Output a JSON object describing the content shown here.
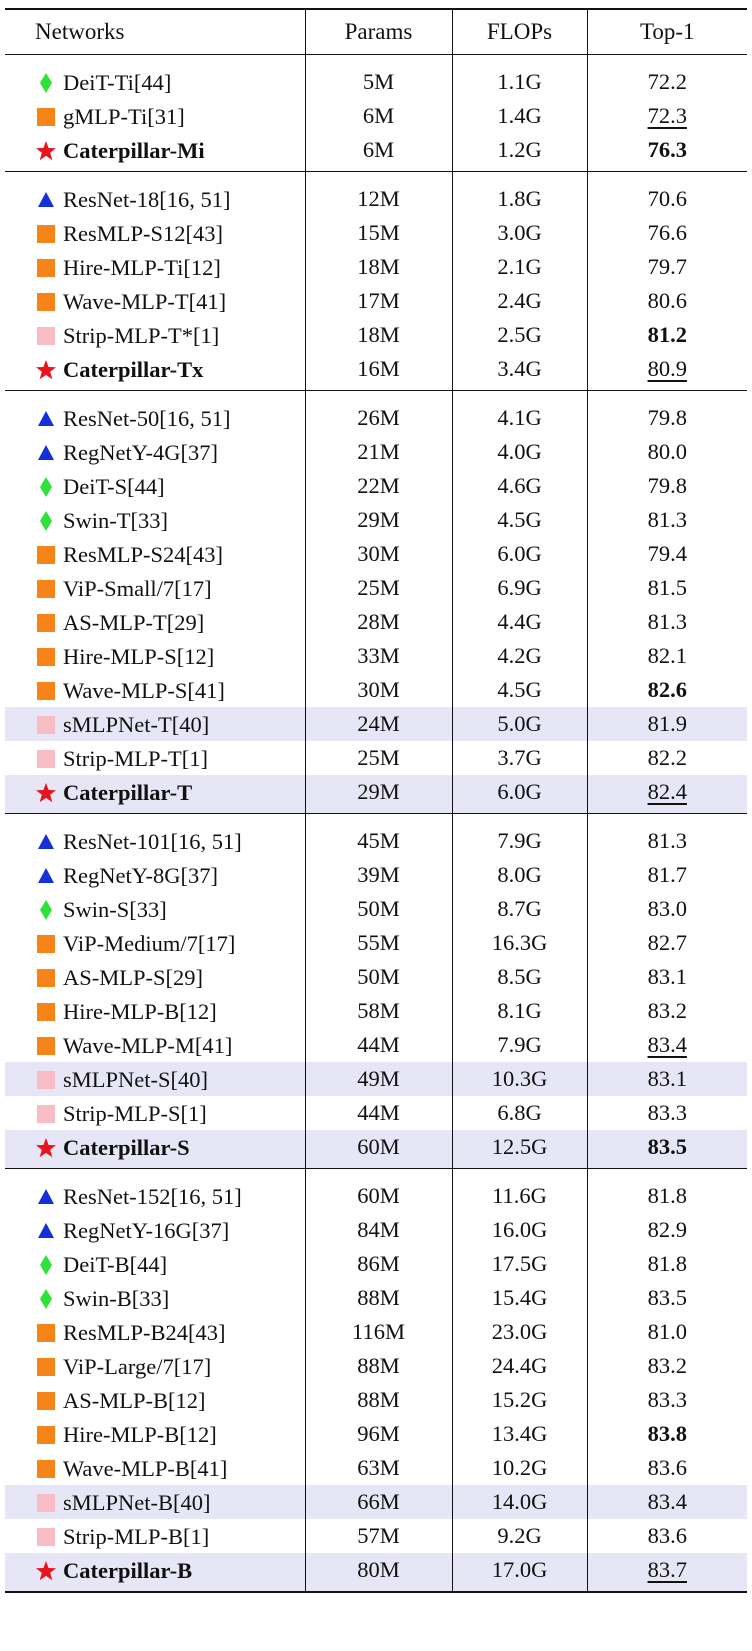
{
  "header": {
    "networks": "Networks",
    "params": "Params",
    "flops": "FLOPs",
    "top1": "Top-1"
  },
  "colors": {
    "star": "#e8141c",
    "triangle": "#1530d6",
    "diamond": "#2ee23a",
    "square_orange": "#f78418",
    "square_pink": "#f8bcc4",
    "highlight": "#e6e6f6"
  },
  "groups": [
    {
      "rows": [
        {
          "marker": "diamond",
          "name": "DeiT-Ti[44]",
          "params": "5M",
          "flops": "1.1G",
          "top1": "72.2",
          "style": "",
          "hl": false,
          "bold": false
        },
        {
          "marker": "square_orange",
          "name": "gMLP-Ti[31]",
          "params": "6M",
          "flops": "1.4G",
          "top1": "72.3",
          "style": "underline",
          "hl": false,
          "bold": false
        },
        {
          "marker": "star",
          "name": "Caterpillar-Mi",
          "params": "6M",
          "flops": "1.2G",
          "top1": "76.3",
          "style": "bold",
          "hl": false,
          "bold": true
        }
      ]
    },
    {
      "rows": [
        {
          "marker": "triangle",
          "name": "ResNet-18[16, 51]",
          "params": "12M",
          "flops": "1.8G",
          "top1": "70.6",
          "style": "",
          "hl": false,
          "bold": false
        },
        {
          "marker": "square_orange",
          "name": "ResMLP-S12[43]",
          "params": "15M",
          "flops": "3.0G",
          "top1": "76.6",
          "style": "",
          "hl": false,
          "bold": false
        },
        {
          "marker": "square_orange",
          "name": "Hire-MLP-Ti[12]",
          "params": "18M",
          "flops": "2.1G",
          "top1": "79.7",
          "style": "",
          "hl": false,
          "bold": false
        },
        {
          "marker": "square_orange",
          "name": "Wave-MLP-T[41]",
          "params": "17M",
          "flops": "2.4G",
          "top1": "80.6",
          "style": "",
          "hl": false,
          "bold": false
        },
        {
          "marker": "square_pink",
          "name": "Strip-MLP-T*[1]",
          "params": "18M",
          "flops": "2.5G",
          "top1": "81.2",
          "style": "bold",
          "hl": false,
          "bold": false
        },
        {
          "marker": "star",
          "name": "Caterpillar-Tx",
          "params": "16M",
          "flops": "3.4G",
          "top1": "80.9",
          "style": "underline",
          "hl": false,
          "bold": true
        }
      ]
    },
    {
      "rows": [
        {
          "marker": "triangle",
          "name": "ResNet-50[16, 51]",
          "params": "26M",
          "flops": "4.1G",
          "top1": "79.8",
          "style": "",
          "hl": false,
          "bold": false
        },
        {
          "marker": "triangle",
          "name": "RegNetY-4G[37]",
          "params": "21M",
          "flops": "4.0G",
          "top1": "80.0",
          "style": "",
          "hl": false,
          "bold": false
        },
        {
          "marker": "diamond",
          "name": "DeiT-S[44]",
          "params": "22M",
          "flops": "4.6G",
          "top1": "79.8",
          "style": "",
          "hl": false,
          "bold": false
        },
        {
          "marker": "diamond",
          "name": "Swin-T[33]",
          "params": "29M",
          "flops": "4.5G",
          "top1": "81.3",
          "style": "",
          "hl": false,
          "bold": false
        },
        {
          "marker": "square_orange",
          "name": "ResMLP-S24[43]",
          "params": "30M",
          "flops": "6.0G",
          "top1": "79.4",
          "style": "",
          "hl": false,
          "bold": false
        },
        {
          "marker": "square_orange",
          "name": "ViP-Small/7[17]",
          "params": "25M",
          "flops": "6.9G",
          "top1": "81.5",
          "style": "",
          "hl": false,
          "bold": false
        },
        {
          "marker": "square_orange",
          "name": "AS-MLP-T[29]",
          "params": "28M",
          "flops": "4.4G",
          "top1": "81.3",
          "style": "",
          "hl": false,
          "bold": false
        },
        {
          "marker": "square_orange",
          "name": "Hire-MLP-S[12]",
          "params": "33M",
          "flops": "4.2G",
          "top1": "82.1",
          "style": "",
          "hl": false,
          "bold": false
        },
        {
          "marker": "square_orange",
          "name": "Wave-MLP-S[41]",
          "params": "30M",
          "flops": "4.5G",
          "top1": "82.6",
          "style": "bold",
          "hl": false,
          "bold": false
        },
        {
          "marker": "square_pink",
          "name": "sMLPNet-T[40]",
          "params": "24M",
          "flops": "5.0G",
          "top1": "81.9",
          "style": "",
          "hl": true,
          "bold": false
        },
        {
          "marker": "square_pink",
          "name": "Strip-MLP-T[1]",
          "params": "25M",
          "flops": "3.7G",
          "top1": "82.2",
          "style": "",
          "hl": false,
          "bold": false
        },
        {
          "marker": "star",
          "name": "Caterpillar-T",
          "params": "29M",
          "flops": "6.0G",
          "top1": "82.4",
          "style": "underline",
          "hl": true,
          "bold": true
        }
      ]
    },
    {
      "rows": [
        {
          "marker": "triangle",
          "name": "ResNet-101[16, 51]",
          "params": "45M",
          "flops": "7.9G",
          "top1": "81.3",
          "style": "",
          "hl": false,
          "bold": false
        },
        {
          "marker": "triangle",
          "name": "RegNetY-8G[37]",
          "params": "39M",
          "flops": "8.0G",
          "top1": "81.7",
          "style": "",
          "hl": false,
          "bold": false
        },
        {
          "marker": "diamond",
          "name": "Swin-S[33]",
          "params": "50M",
          "flops": "8.7G",
          "top1": "83.0",
          "style": "",
          "hl": false,
          "bold": false
        },
        {
          "marker": "square_orange",
          "name": "ViP-Medium/7[17]",
          "params": "55M",
          "flops": "16.3G",
          "top1": "82.7",
          "style": "",
          "hl": false,
          "bold": false
        },
        {
          "marker": "square_orange",
          "name": "AS-MLP-S[29]",
          "params": "50M",
          "flops": "8.5G",
          "top1": "83.1",
          "style": "",
          "hl": false,
          "bold": false
        },
        {
          "marker": "square_orange",
          "name": "Hire-MLP-B[12]",
          "params": "58M",
          "flops": "8.1G",
          "top1": "83.2",
          "style": "",
          "hl": false,
          "bold": false
        },
        {
          "marker": "square_orange",
          "name": "Wave-MLP-M[41]",
          "params": "44M",
          "flops": "7.9G",
          "top1": "83.4",
          "style": "underline",
          "hl": false,
          "bold": false
        },
        {
          "marker": "square_pink",
          "name": "sMLPNet-S[40]",
          "params": "49M",
          "flops": "10.3G",
          "top1": "83.1",
          "style": "",
          "hl": true,
          "bold": false
        },
        {
          "marker": "square_pink",
          "name": "Strip-MLP-S[1]",
          "params": "44M",
          "flops": "6.8G",
          "top1": "83.3",
          "style": "",
          "hl": false,
          "bold": false
        },
        {
          "marker": "star",
          "name": "Caterpillar-S",
          "params": "60M",
          "flops": "12.5G",
          "top1": "83.5",
          "style": "bold",
          "hl": true,
          "bold": true
        }
      ]
    },
    {
      "rows": [
        {
          "marker": "triangle",
          "name": "ResNet-152[16, 51]",
          "params": "60M",
          "flops": "11.6G",
          "top1": "81.8",
          "style": "",
          "hl": false,
          "bold": false
        },
        {
          "marker": "triangle",
          "name": "RegNetY-16G[37]",
          "params": "84M",
          "flops": "16.0G",
          "top1": "82.9",
          "style": "",
          "hl": false,
          "bold": false
        },
        {
          "marker": "diamond",
          "name": "DeiT-B[44]",
          "params": "86M",
          "flops": "17.5G",
          "top1": "81.8",
          "style": "",
          "hl": false,
          "bold": false
        },
        {
          "marker": "diamond",
          "name": "Swin-B[33]",
          "params": "88M",
          "flops": "15.4G",
          "top1": "83.5",
          "style": "",
          "hl": false,
          "bold": false
        },
        {
          "marker": "square_orange",
          "name": "ResMLP-B24[43]",
          "params": "116M",
          "flops": "23.0G",
          "top1": "81.0",
          "style": "",
          "hl": false,
          "bold": false
        },
        {
          "marker": "square_orange",
          "name": "ViP-Large/7[17]",
          "params": "88M",
          "flops": "24.4G",
          "top1": "83.2",
          "style": "",
          "hl": false,
          "bold": false
        },
        {
          "marker": "square_orange",
          "name": "AS-MLP-B[12]",
          "params": "88M",
          "flops": "15.2G",
          "top1": "83.3",
          "style": "",
          "hl": false,
          "bold": false
        },
        {
          "marker": "square_orange",
          "name": "Hire-MLP-B[12]",
          "params": "96M",
          "flops": "13.4G",
          "top1": "83.8",
          "style": "bold",
          "hl": false,
          "bold": false
        },
        {
          "marker": "square_orange",
          "name": "Wave-MLP-B[41]",
          "params": "63M",
          "flops": "10.2G",
          "top1": "83.6",
          "style": "",
          "hl": false,
          "bold": false
        },
        {
          "marker": "square_pink",
          "name": "sMLPNet-B[40]",
          "params": "66M",
          "flops": "14.0G",
          "top1": "83.4",
          "style": "",
          "hl": true,
          "bold": false
        },
        {
          "marker": "square_pink",
          "name": "Strip-MLP-B[1]",
          "params": "57M",
          "flops": "9.2G",
          "top1": "83.6",
          "style": "",
          "hl": false,
          "bold": false
        },
        {
          "marker": "star",
          "name": "Caterpillar-B",
          "params": "80M",
          "flops": "17.0G",
          "top1": "83.7",
          "style": "underline",
          "hl": true,
          "bold": true
        }
      ]
    }
  ]
}
